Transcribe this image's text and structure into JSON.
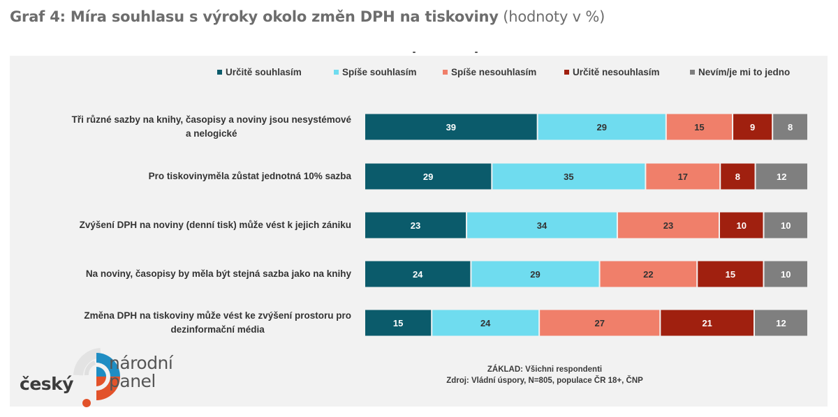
{
  "header": {
    "title_bold": "Graf 4: Míra souhlasu s výroky okolo změn DPH na tiskoviny",
    "title_suffix": "(hodnoty v %)"
  },
  "legend": [
    {
      "label": "Určitě souhlasím",
      "color": "#0b5b6b"
    },
    {
      "label": "Spíše souhlasím",
      "color": "#6fdcef"
    },
    {
      "label": "Spíše nesouhlasím",
      "color": "#f07f6a"
    },
    {
      "label": "Určitě nesouhlasím",
      "color": "#a0200f"
    },
    {
      "label": "Nevím/je mi to jedno",
      "color": "#7f7f7f"
    }
  ],
  "chart_data": {
    "type": "bar",
    "orientation": "horizontal-stacked-100",
    "title": "Graf 4: Míra souhlasu s výroky okolo změn DPH na tiskoviny (hodnoty v %)",
    "xlabel": "",
    "ylabel": "",
    "legend_position": "top",
    "grid": false,
    "categories": [
      [
        "Tři různé sazby na knihy, časopisy a noviny jsou nesystémové",
        "a nelogické"
      ],
      [
        "Pro tiskovinyměla zůstat jednotná 10% sazba"
      ],
      [
        "Zvýšení DPH na noviny (denní tisk) může vést k jejich zániku"
      ],
      [
        "Na noviny, časopisy by měla být stejná sazba jako na knihy"
      ],
      [
        "Změna DPH na tiskoviny může vést ke zvýšení prostoru pro",
        "dezinformační média"
      ]
    ],
    "series": [
      {
        "name": "Určitě souhlasím",
        "color": "#0b5b6b",
        "text_color": "#ffffff",
        "values": [
          39,
          29,
          23,
          24,
          15
        ]
      },
      {
        "name": "Spíše souhlasím",
        "color": "#6fdcef",
        "text_color": "#333333",
        "values": [
          29,
          35,
          34,
          29,
          24
        ]
      },
      {
        "name": "Spíše nesouhlasím",
        "color": "#f07f6a",
        "text_color": "#333333",
        "values": [
          15,
          17,
          23,
          22,
          27
        ]
      },
      {
        "name": "Určitě nesouhlasím",
        "color": "#a0200f",
        "text_color": "#ffffff",
        "values": [
          9,
          8,
          10,
          15,
          21
        ]
      },
      {
        "name": "Nevím/je mi to jedno",
        "color": "#7f7f7f",
        "text_color": "#ffffff",
        "values": [
          8,
          12,
          10,
          10,
          12
        ]
      }
    ],
    "xlim": [
      0,
      100
    ]
  },
  "footnote": {
    "line1": "ZÁKLAD: Všichni respondenti",
    "line2": "Zdroj: Vládní úspory, N=805, populace ČR 18+, ČNP"
  },
  "logo": {
    "word1": "český",
    "word2": "národní",
    "word3": "panel"
  }
}
